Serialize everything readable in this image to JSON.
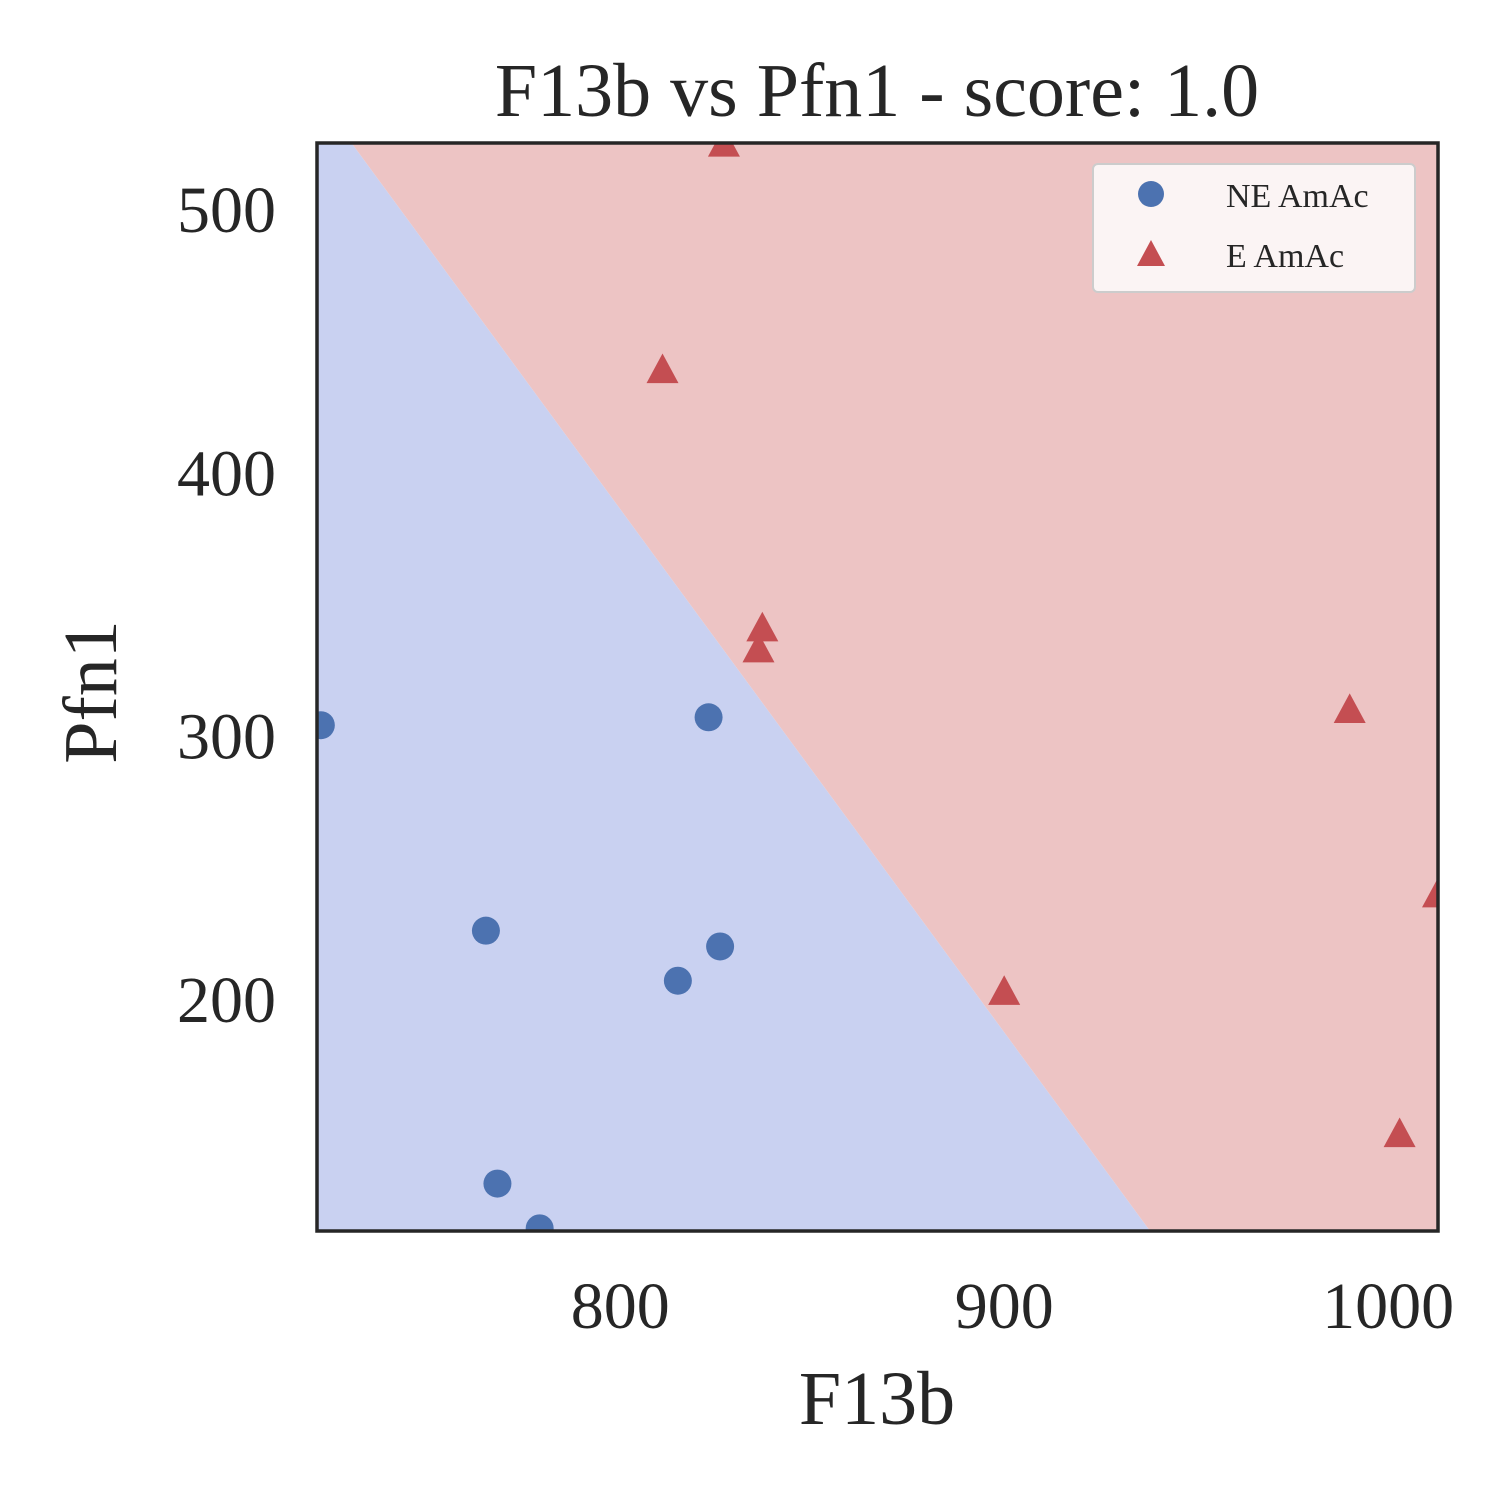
{
  "chart_data": {
    "type": "scatter",
    "title": "F13b vs Pfn1 - score: 1.0",
    "xlabel": "F13b",
    "ylabel": "Pfn1",
    "xlim": [
      721,
      1013
    ],
    "ylim": [
      112,
      525
    ],
    "x_ticks": [
      800,
      900,
      1000
    ],
    "y_ticks": [
      200,
      300,
      400,
      500
    ],
    "grid": false,
    "legend_position": "top-right",
    "decision_boundary": {
      "line": [
        [
          730,
          525
        ],
        [
          938,
          112
        ]
      ],
      "left_region": "NE AmAc",
      "right_region": "E AmAc"
    },
    "colors": {
      "ne_point": "#4c72b0",
      "e_point": "#c44e52",
      "ne_region": "#c9d1f1",
      "e_region": "#edc4c4",
      "frame": "#262626"
    },
    "series": [
      {
        "name": "NE AmAc",
        "marker": "circle",
        "points": [
          [
            722,
            304
          ],
          [
            765,
            226
          ],
          [
            768,
            130
          ],
          [
            779,
            113
          ],
          [
            815,
            207
          ],
          [
            823,
            307
          ],
          [
            826,
            220
          ]
        ]
      },
      {
        "name": "E AmAc",
        "marker": "triangle",
        "points": [
          [
            827,
            525
          ],
          [
            811,
            439
          ],
          [
            837,
            341
          ],
          [
            836,
            333
          ],
          [
            900,
            203
          ],
          [
            990,
            310
          ],
          [
            1003,
            149
          ],
          [
            1013,
            240
          ]
        ]
      }
    ]
  }
}
